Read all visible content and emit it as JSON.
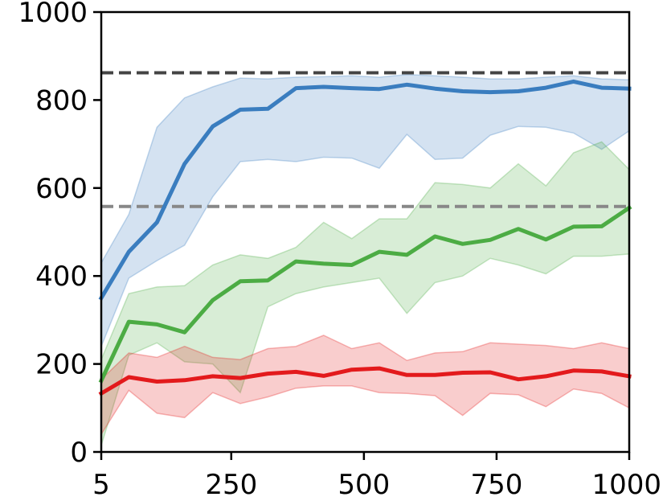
{
  "chart_data": {
    "type": "line",
    "title": "",
    "xlabel": "",
    "ylabel": "",
    "xlim": [
      5,
      1000
    ],
    "ylim": [
      0,
      1000
    ],
    "grid": false,
    "legend": "none",
    "x_ticks": [
      5,
      250,
      500,
      750,
      1000
    ],
    "y_ticks": [
      0,
      200,
      400,
      600,
      800,
      1000
    ],
    "x_tick_labels": [
      "5",
      "250",
      "500",
      "750",
      "1000"
    ],
    "y_tick_labels": [
      "0",
      "200",
      "400",
      "600",
      "800",
      "1000"
    ],
    "x": [
      5,
      57,
      110,
      162,
      215,
      267,
      319,
      372,
      424,
      477,
      529,
      581,
      634,
      686,
      738,
      791,
      843,
      895,
      948,
      1000
    ],
    "series": [
      {
        "color": "#3a7dbf",
        "values": [
          350,
          455,
          522,
          655,
          740,
          778,
          780,
          827,
          830,
          827,
          825,
          835,
          826,
          820,
          818,
          820,
          828,
          842,
          828,
          826
        ],
        "upper": [
          430,
          540,
          738,
          805,
          830,
          850,
          848,
          852,
          853,
          855,
          852,
          858,
          855,
          852,
          848,
          848,
          852,
          855,
          848,
          846
        ],
        "lower": [
          240,
          395,
          435,
          470,
          580,
          660,
          665,
          660,
          670,
          668,
          645,
          722,
          665,
          668,
          720,
          740,
          738,
          725,
          688,
          730
        ]
      },
      {
        "color": "#4cac44",
        "values": [
          162,
          296,
          290,
          272,
          345,
          388,
          390,
          433,
          428,
          425,
          455,
          448,
          490,
          473,
          482,
          507,
          483,
          512,
          513,
          555
        ],
        "upper": [
          210,
          360,
          375,
          378,
          425,
          448,
          440,
          465,
          522,
          485,
          530,
          530,
          612,
          608,
          600,
          655,
          605,
          680,
          705,
          642
        ],
        "lower": [
          15,
          220,
          248,
          205,
          200,
          135,
          330,
          360,
          375,
          385,
          395,
          315,
          385,
          400,
          440,
          425,
          405,
          445,
          445,
          450
        ]
      },
      {
        "color": "#e31a1c",
        "values": [
          133,
          170,
          160,
          163,
          172,
          168,
          178,
          182,
          173,
          187,
          190,
          175,
          175,
          180,
          181,
          165,
          172,
          185,
          183,
          172
        ],
        "upper": [
          165,
          225,
          215,
          240,
          215,
          210,
          235,
          240,
          265,
          235,
          248,
          208,
          225,
          228,
          248,
          245,
          242,
          235,
          248,
          235
        ],
        "lower": [
          40,
          140,
          88,
          78,
          135,
          110,
          125,
          145,
          150,
          150,
          135,
          133,
          128,
          83,
          133,
          130,
          103,
          143,
          133,
          100
        ]
      }
    ],
    "reference_lines": [
      {
        "y": 862,
        "color": "#444444"
      },
      {
        "y": 558,
        "color": "#888888"
      }
    ]
  }
}
